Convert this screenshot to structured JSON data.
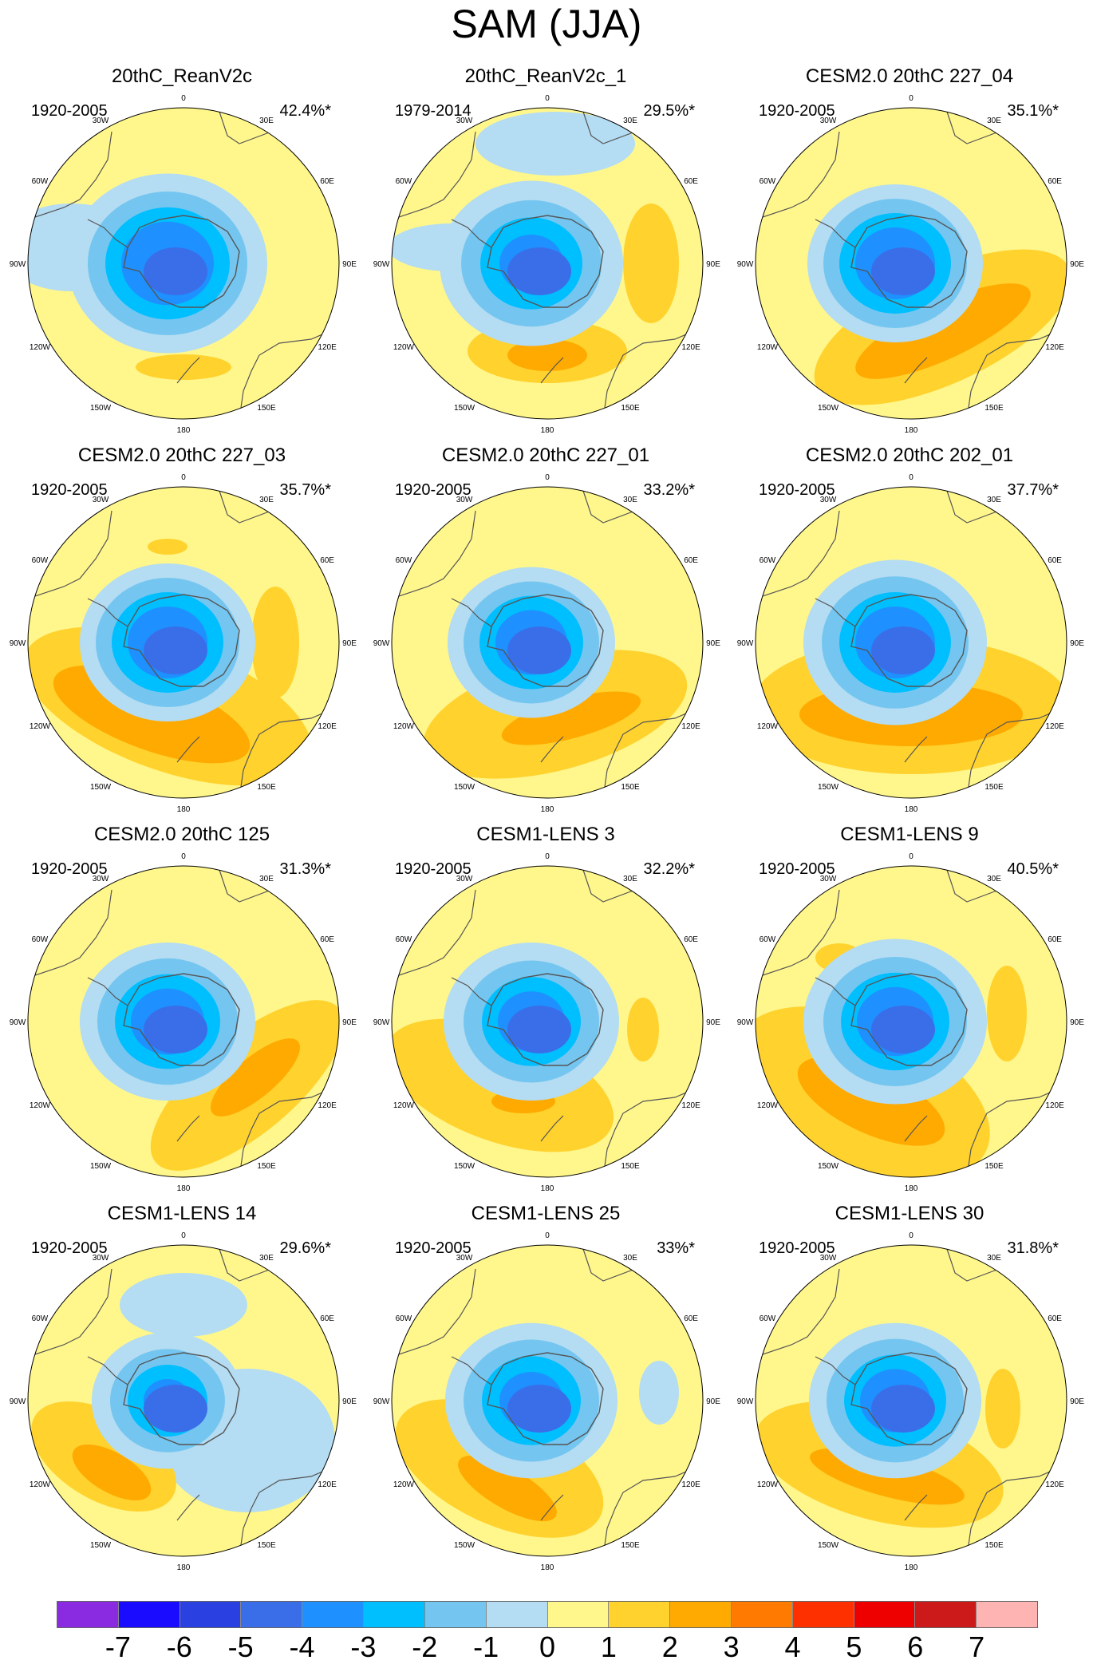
{
  "title": "SAM (JJA)",
  "lon_labels": [
    "0",
    "30E",
    "60E",
    "90E",
    "120E",
    "150E",
    "180",
    "150W",
    "120W",
    "90W",
    "60W",
    "30W"
  ],
  "panels": [
    {
      "title": "20thC_ReanV2c",
      "period": "1920-2005",
      "pct": "42.4%*"
    },
    {
      "title": "20thC_ReanV2c_1",
      "period": "1979-2014",
      "pct": "29.5%*"
    },
    {
      "title": "CESM2.0 20thC 227_04",
      "period": "1920-2005",
      "pct": "35.1%*"
    },
    {
      "title": "CESM2.0 20thC 227_03",
      "period": "1920-2005",
      "pct": "35.7%*"
    },
    {
      "title": "CESM2.0 20thC 227_01",
      "period": "1920-2005",
      "pct": "33.2%*"
    },
    {
      "title": "CESM2.0 20thC 202_01",
      "period": "1920-2005",
      "pct": "37.7%*"
    },
    {
      "title": "CESM2.0 20thC 125",
      "period": "1920-2005",
      "pct": "31.3%*"
    },
    {
      "title": "CESM1-LENS 3",
      "period": "1920-2005",
      "pct": "32.2%*"
    },
    {
      "title": "CESM1-LENS 9",
      "period": "1920-2005",
      "pct": "40.5%*"
    },
    {
      "title": "CESM1-LENS 14",
      "period": "1920-2005",
      "pct": "29.6%*"
    },
    {
      "title": "CESM1-LENS 25",
      "period": "1920-2005",
      "pct": "33%*"
    },
    {
      "title": "CESM1-LENS 30",
      "period": "1920-2005",
      "pct": "31.8%*"
    }
  ],
  "colorbar": {
    "labels": [
      "-7",
      "-6",
      "-5",
      "-4",
      "-3",
      "-2",
      "-1",
      "0",
      "1",
      "2",
      "3",
      "4",
      "5",
      "6",
      "7"
    ],
    "colors": [
      "#8a2be2",
      "#1a0dff",
      "#2a40e0",
      "#3a6ee8",
      "#1e90ff",
      "#00bfff",
      "#74c6f0",
      "#b4dcf2",
      "#fff78c",
      "#ffd22e",
      "#ffaa00",
      "#ff7a00",
      "#ff3000",
      "#ee0000",
      "#cc1a1a",
      "#ffb4b4"
    ]
  },
  "shade_colors": {
    "l1": "#b4dcf2",
    "l2": "#74c6f0",
    "l3": "#00bfff",
    "l4": "#1e90ff",
    "l5": "#3a6ee8",
    "l6": "#2a40e0",
    "p1": "#fff78c",
    "p2": "#ffd22e",
    "p3": "#ffaa00"
  }
}
